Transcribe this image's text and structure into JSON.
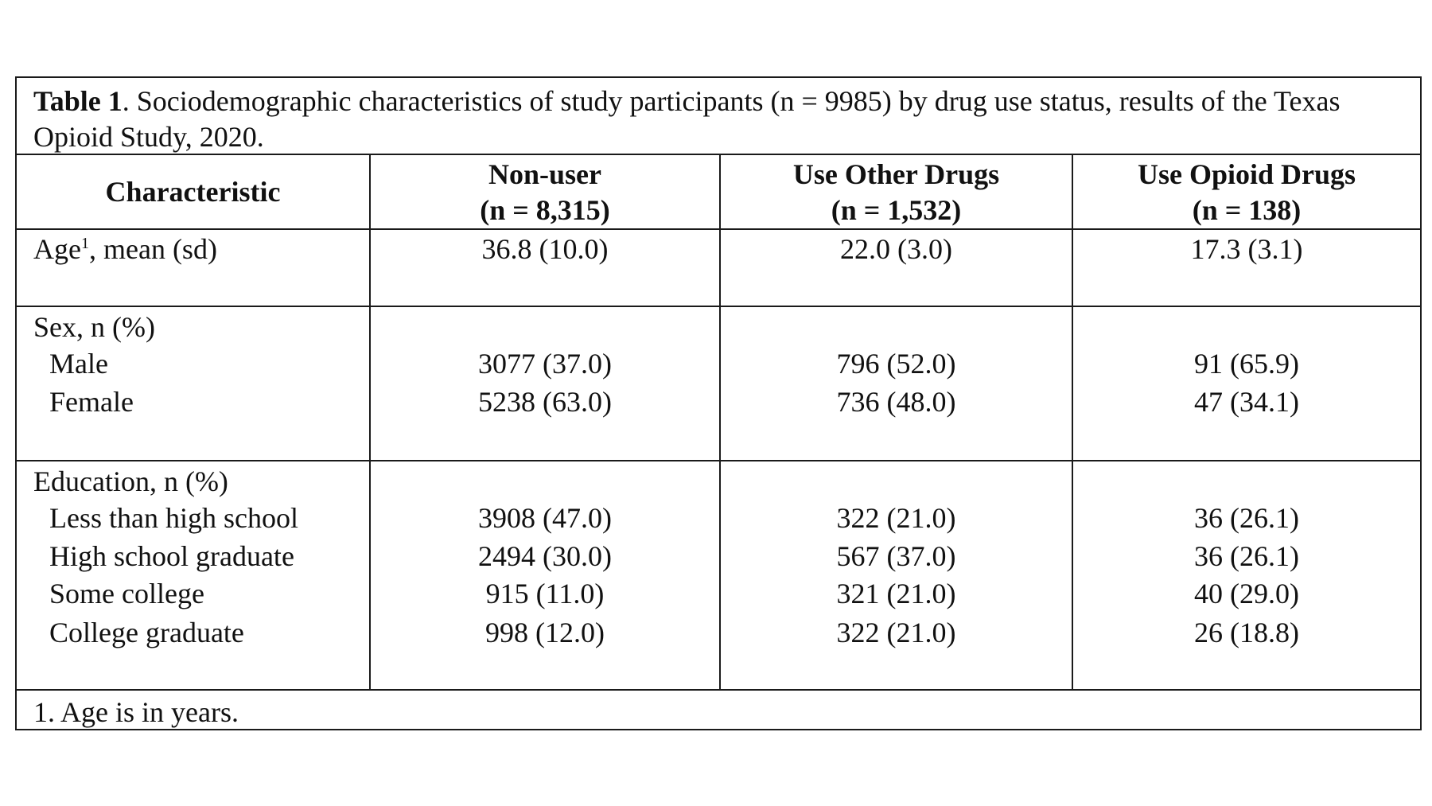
{
  "caption": {
    "label": "Table 1",
    "text": ". Sociodemographic characteristics of study participants (n = 9985) by drug use status, results of the Texas Opioid Study, 2020."
  },
  "columns": [
    {
      "name": "Characteristic",
      "n": ""
    },
    {
      "name": "Non-user",
      "n": "(n = 8,315)"
    },
    {
      "name": "Use Other Drugs",
      "n": "(n = 1,532)"
    },
    {
      "name": "Use Opioid Drugs",
      "n": "(n = 138)"
    }
  ],
  "sections": {
    "age": {
      "label": "Age",
      "superscript": "1",
      "suffix": ", mean (sd)",
      "values": [
        "36.8 (10.0)",
        "22.0 (3.0)",
        "17.3 (3.1)"
      ]
    },
    "sex": {
      "label": "Sex, n (%)",
      "rows": [
        {
          "label": "Male",
          "values": [
            "3077 (37.0)",
            "796 (52.0)",
            "91 (65.9)"
          ]
        },
        {
          "label": "Female",
          "values": [
            "5238 (63.0)",
            "736 (48.0)",
            "47 (34.1)"
          ]
        }
      ]
    },
    "education": {
      "label": "Education, n (%)",
      "rows": [
        {
          "label": "Less than high school",
          "values": [
            "3908 (47.0)",
            "322 (21.0)",
            "36 (26.1)"
          ]
        },
        {
          "label": "High school graduate",
          "values": [
            "2494 (30.0)",
            "567 (37.0)",
            "36 (26.1)"
          ]
        },
        {
          "label": "Some college",
          "values": [
            "915 (11.0)",
            "321 (21.0)",
            "40 (29.0)"
          ]
        },
        {
          "label": "College graduate",
          "values": [
            "998 (12.0)",
            "322 (21.0)",
            "26 (18.8)"
          ]
        }
      ]
    }
  },
  "footnote": "1. Age is in years."
}
